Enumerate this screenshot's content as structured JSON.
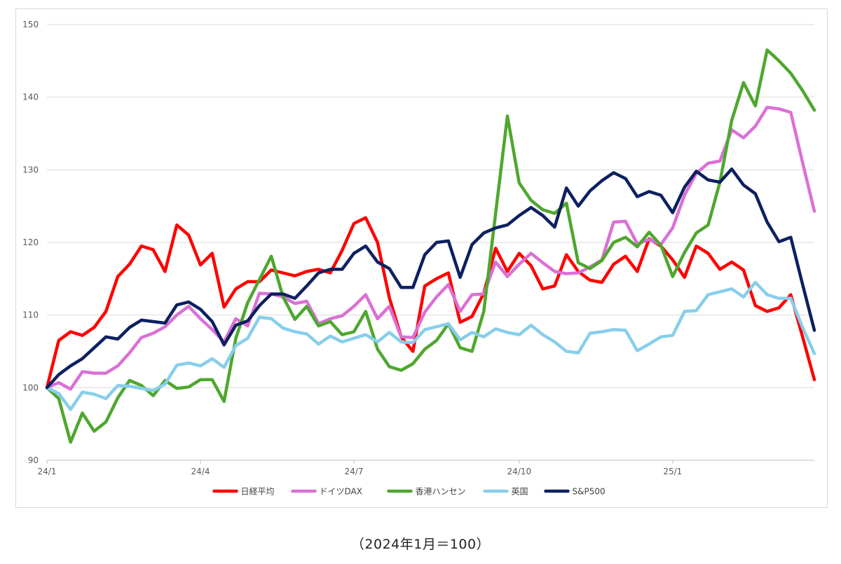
{
  "caption": "（2024年1月＝100）",
  "chart_data": {
    "type": "line",
    "title": "",
    "xlabel": "",
    "ylabel": "",
    "ylim": [
      90,
      150
    ],
    "yticks": [
      90,
      100,
      110,
      120,
      130,
      140,
      150
    ],
    "grid": true,
    "legend_position": "bottom",
    "x_tick_labels": [
      {
        "index": 0,
        "label": "24/1"
      },
      {
        "index": 13,
        "label": "24/4"
      },
      {
        "index": 26,
        "label": "24/7"
      },
      {
        "index": 40,
        "label": "24/10"
      },
      {
        "index": 53,
        "label": "25/1"
      }
    ],
    "x_count": 66,
    "series": [
      {
        "name": "日経平均",
        "color": "#ff0000",
        "values": [
          100,
          106.5,
          107.7,
          107.2,
          108.3,
          110.5,
          115.3,
          117,
          119.5,
          119,
          116,
          122.4,
          121,
          116.9,
          118.5,
          111.1,
          113.6,
          114.6,
          114.6,
          116.2,
          115.8,
          115.4,
          116,
          116.3,
          115.8,
          118.9,
          122.6,
          123.4,
          120,
          112.4,
          107,
          105,
          114,
          115,
          115.8,
          109,
          109.8,
          113,
          119.2,
          116,
          118.5,
          116.8,
          113.6,
          114,
          118.3,
          116,
          114.8,
          114.5,
          117,
          118.1,
          116,
          120.5,
          119.5,
          117.6,
          115.2,
          119.5,
          118.5,
          116.3,
          117.3,
          116.2,
          111.3,
          110.5,
          111,
          112.8,
          107,
          101.1
        ]
      },
      {
        "name": "ドイツDAX",
        "color": "#da70d6",
        "values": [
          100,
          100.7,
          99.8,
          102.2,
          102,
          102,
          103,
          104.8,
          106.9,
          107.5,
          108.4,
          110,
          111.2,
          109.5,
          108,
          106.3,
          109.5,
          108.5,
          113,
          112.9,
          112.5,
          111.6,
          111.9,
          108.8,
          109.5,
          109.9,
          111.2,
          112.8,
          109.5,
          111.2,
          107,
          106.9,
          110.4,
          112.5,
          114.2,
          110.5,
          112.8,
          112.9,
          117.3,
          115.3,
          117,
          118.5,
          117.2,
          116,
          115.7,
          115.8,
          116.6,
          117.6,
          122.8,
          122.9,
          119.8,
          120.4,
          119.7,
          122,
          126.5,
          129.5,
          130.9,
          131.2,
          135.5,
          134.4,
          136,
          138.6,
          138.4,
          137.9,
          131,
          124.3
        ]
      },
      {
        "name": "香港ハンセン",
        "color": "#4ea72e",
        "values": [
          100,
          98.5,
          92.5,
          96.5,
          94,
          95.3,
          98.6,
          101,
          100.3,
          98.9,
          101,
          99.9,
          100.1,
          101.1,
          101.1,
          98.1,
          106.8,
          111.7,
          114.9,
          118.1,
          112.5,
          109.4,
          111.2,
          108.5,
          109.1,
          107.3,
          107.7,
          110.5,
          105.3,
          102.9,
          102.4,
          103.3,
          105.3,
          106.5,
          108.8,
          105.5,
          105,
          110.5,
          124,
          137.4,
          128.2,
          125.8,
          124.5,
          124,
          125.4,
          117.2,
          116.4,
          117.5,
          120,
          120.7,
          119.4,
          121.4,
          119.6,
          115.3,
          118.6,
          121.3,
          122.4,
          128.3,
          136.8,
          142,
          138.8,
          146.5,
          145,
          143.3,
          140.9,
          138.2
        ]
      },
      {
        "name": "英国",
        "color": "#87ceeb",
        "values": [
          100,
          99.2,
          97,
          99.4,
          99.1,
          98.5,
          100.3,
          100.2,
          99.9,
          99.6,
          100.5,
          103.1,
          103.4,
          103,
          104,
          102.8,
          105.8,
          106.8,
          109.7,
          109.5,
          108.2,
          107.7,
          107.4,
          106,
          107.1,
          106.3,
          106.8,
          107.3,
          106.3,
          107.6,
          106.3,
          106.2,
          108,
          108.4,
          108.8,
          106.6,
          107.6,
          107,
          108.1,
          107.6,
          107.3,
          108.6,
          107.3,
          106.3,
          105,
          104.8,
          107.5,
          107.7,
          108,
          107.9,
          105.1,
          106,
          107,
          107.2,
          110.5,
          110.6,
          112.8,
          113.2,
          113.6,
          112.5,
          114.5,
          112.8,
          112.3,
          112.3,
          108.3,
          104.7
        ]
      },
      {
        "name": "S&P500",
        "color": "#0d2060",
        "values": [
          100,
          101.8,
          103,
          104,
          105.5,
          107,
          106.7,
          108.3,
          109.3,
          109.1,
          108.9,
          111.4,
          111.8,
          110.8,
          109.1,
          105.9,
          108.6,
          109.2,
          111.3,
          112.9,
          112.9,
          112.3,
          114,
          115.8,
          116.3,
          116.3,
          118.5,
          119.5,
          117.3,
          116.4,
          113.8,
          113.8,
          118.3,
          120,
          120.2,
          115.2,
          119.7,
          121.3,
          122,
          122.4,
          123.7,
          124.8,
          123.7,
          122.1,
          127.5,
          125,
          127.1,
          128.5,
          129.6,
          128.8,
          126.3,
          127,
          126.5,
          124.1,
          127.6,
          129.8,
          128.6,
          128.3,
          130.1,
          127.9,
          126.7,
          122.8,
          120.1,
          120.7,
          114.2,
          107.9
        ]
      }
    ]
  }
}
